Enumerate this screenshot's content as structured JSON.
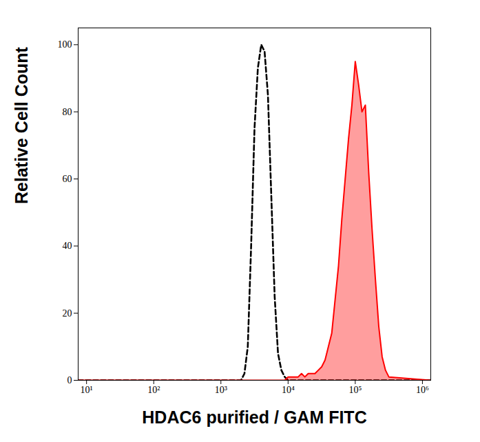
{
  "chart_data": {
    "type": "line",
    "x_label": "HDAC6 purified / GAM FITC",
    "y_label": "Relative Cell Count",
    "log": "x",
    "grid": false,
    "xlim": [
      7.5,
      1330000
    ],
    "ylim": [
      0,
      105
    ],
    "xticks": [
      {
        "value": 10,
        "label": "10¹"
      },
      {
        "value": 100,
        "label": "10²"
      },
      {
        "value": 1000,
        "label": "10³"
      },
      {
        "value": 10000,
        "label": "10⁴"
      },
      {
        "value": 100000,
        "label": "10⁵"
      },
      {
        "value": 1000000,
        "label": "10⁶"
      }
    ],
    "yticks": [
      0,
      20,
      40,
      60,
      80,
      100
    ],
    "x": [
      7.5,
      1585,
      1778,
      1995,
      2239,
      2512,
      2818,
      3162,
      3548,
      3981,
      4467,
      5012,
      5623,
      6310,
      7079,
      7943,
      8913,
      10000,
      11220,
      12589,
      14125,
      15849,
      17783,
      19953,
      22387,
      25119,
      28184,
      31623,
      35481,
      39811,
      44668,
      50119,
      56234,
      63096,
      70795,
      79433,
      89125,
      100000,
      112202,
      125893,
      141254,
      158489,
      177828,
      199526,
      223872,
      251189,
      281838,
      316228,
      1330000
    ],
    "series": [
      {
        "type": "line",
        "color": "#000000",
        "line_style": "dashed",
        "values": [
          0,
          0,
          0,
          0,
          2,
          10,
          40,
          75,
          93,
          100,
          98,
          85,
          55,
          25,
          8,
          3,
          1,
          0,
          0,
          0,
          0,
          0,
          0,
          0,
          0,
          0,
          0,
          0,
          0,
          0,
          0,
          0,
          0,
          0,
          0,
          0,
          0,
          0,
          0,
          0,
          0,
          0,
          0,
          0,
          0,
          0,
          0,
          0,
          0
        ]
      },
      {
        "type": "area",
        "color": "#ff0000",
        "line_style": "solid",
        "values": [
          0,
          0,
          0,
          0,
          0,
          0,
          0,
          0,
          0,
          0,
          0,
          0,
          0,
          0,
          0,
          0,
          0,
          1,
          1,
          1,
          1,
          2,
          1,
          2,
          2,
          2,
          3,
          4,
          6,
          10,
          14,
          24,
          34,
          48,
          60,
          72,
          82,
          95,
          88,
          80,
          82,
          62,
          45,
          30,
          16,
          7,
          3,
          1,
          0
        ]
      }
    ]
  }
}
